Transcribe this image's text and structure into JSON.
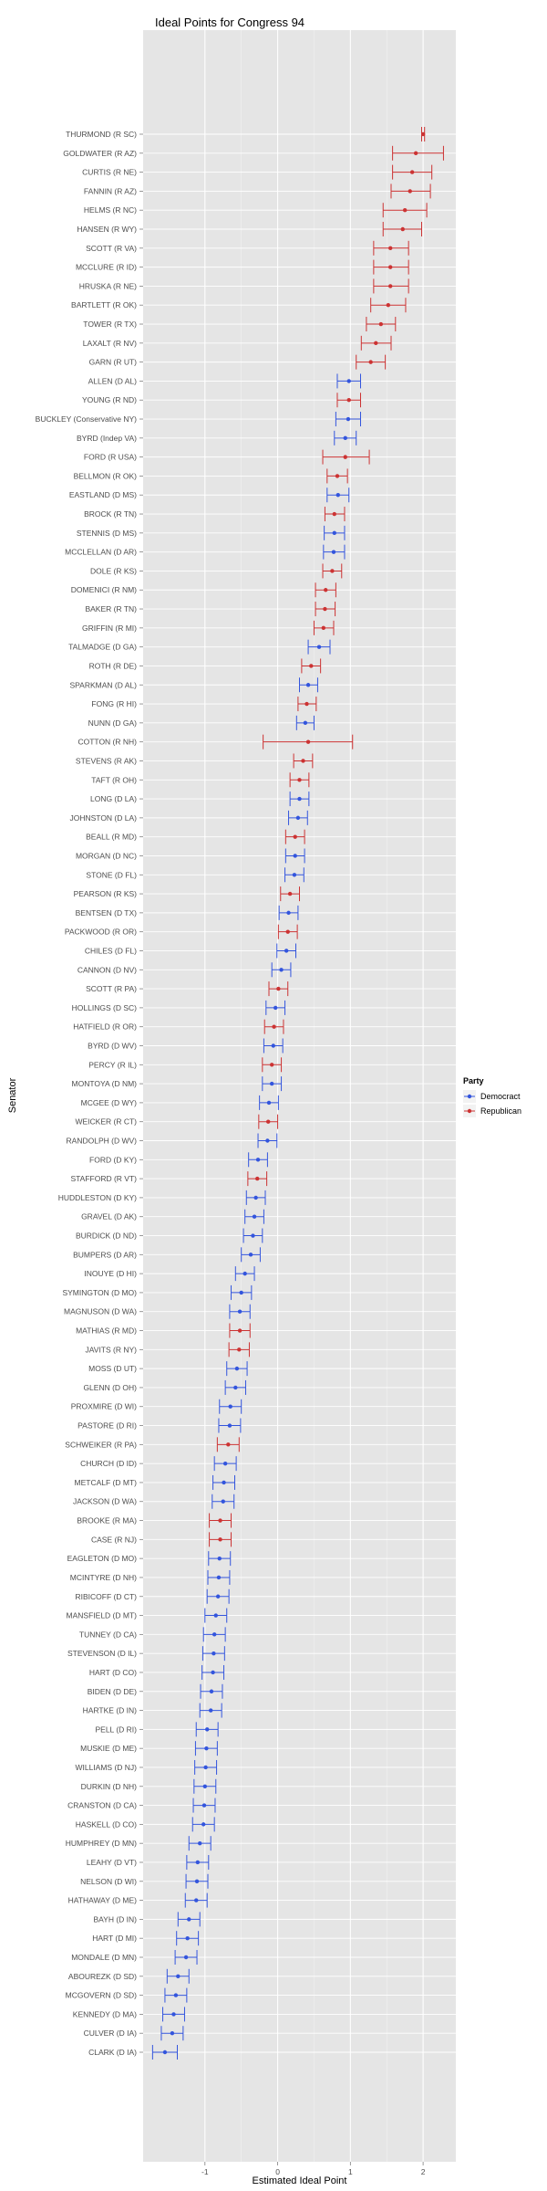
{
  "chart_data": {
    "type": "scatter",
    "title": "Ideal Points for Congress 94",
    "xlabel": "Estimated Ideal Point",
    "ylabel": "Senator",
    "xlim": [
      -1.85,
      2.45
    ],
    "xticks": [
      -1,
      0,
      1,
      2
    ],
    "xtick_labels": [
      "-1",
      "0",
      "1",
      "2"
    ],
    "grid": true,
    "error_bars": true,
    "legend": {
      "title": "Party",
      "position": "right",
      "entries": [
        {
          "name": "Democract",
          "color": "#3355dd"
        },
        {
          "name": "Republican",
          "color": "#cc3333"
        }
      ]
    },
    "party_colors": {
      "D": "#3355dd",
      "R": "#cc3333"
    },
    "points": [
      {
        "label": "THURMOND (R SC)",
        "party": "R",
        "x": 2.0,
        "lo": 1.98,
        "hi": 2.02
      },
      {
        "label": "GOLDWATER (R AZ)",
        "party": "R",
        "x": 1.9,
        "lo": 1.58,
        "hi": 2.28
      },
      {
        "label": "CURTIS (R NE)",
        "party": "R",
        "x": 1.85,
        "lo": 1.58,
        "hi": 2.12
      },
      {
        "label": "FANNIN (R AZ)",
        "party": "R",
        "x": 1.82,
        "lo": 1.56,
        "hi": 2.1
      },
      {
        "label": "HELMS (R NC)",
        "party": "R",
        "x": 1.75,
        "lo": 1.45,
        "hi": 2.05
      },
      {
        "label": "HANSEN (R WY)",
        "party": "R",
        "x": 1.72,
        "lo": 1.45,
        "hi": 1.98
      },
      {
        "label": "SCOTT (R VA)",
        "party": "R",
        "x": 1.55,
        "lo": 1.32,
        "hi": 1.8
      },
      {
        "label": "MCCLURE (R ID)",
        "party": "R",
        "x": 1.55,
        "lo": 1.32,
        "hi": 1.8
      },
      {
        "label": "HRUSKA (R NE)",
        "party": "R",
        "x": 1.55,
        "lo": 1.32,
        "hi": 1.8
      },
      {
        "label": "BARTLETT (R OK)",
        "party": "R",
        "x": 1.52,
        "lo": 1.28,
        "hi": 1.76
      },
      {
        "label": "TOWER (R TX)",
        "party": "R",
        "x": 1.42,
        "lo": 1.22,
        "hi": 1.62
      },
      {
        "label": "LAXALT (R NV)",
        "party": "R",
        "x": 1.35,
        "lo": 1.15,
        "hi": 1.56
      },
      {
        "label": "GARN (R UT)",
        "party": "R",
        "x": 1.28,
        "lo": 1.08,
        "hi": 1.48
      },
      {
        "label": "ALLEN (D AL)",
        "party": "D",
        "x": 0.98,
        "lo": 0.82,
        "hi": 1.14
      },
      {
        "label": "YOUNG (R ND)",
        "party": "R",
        "x": 0.98,
        "lo": 0.82,
        "hi": 1.14
      },
      {
        "label": "BUCKLEY (Conservative NY)",
        "party": "D",
        "x": 0.97,
        "lo": 0.8,
        "hi": 1.14
      },
      {
        "label": "BYRD (Indep VA)",
        "party": "D",
        "x": 0.93,
        "lo": 0.78,
        "hi": 1.08
      },
      {
        "label": "FORD (R USA)",
        "party": "R",
        "x": 0.93,
        "lo": 0.62,
        "hi": 1.26
      },
      {
        "label": "BELLMON (R OK)",
        "party": "R",
        "x": 0.82,
        "lo": 0.68,
        "hi": 0.96
      },
      {
        "label": "EASTLAND (D MS)",
        "party": "D",
        "x": 0.83,
        "lo": 0.68,
        "hi": 0.98
      },
      {
        "label": "BROCK (R TN)",
        "party": "R",
        "x": 0.78,
        "lo": 0.65,
        "hi": 0.92
      },
      {
        "label": "STENNIS (D MS)",
        "party": "D",
        "x": 0.78,
        "lo": 0.64,
        "hi": 0.92
      },
      {
        "label": "MCCLELLAN (D AR)",
        "party": "D",
        "x": 0.77,
        "lo": 0.63,
        "hi": 0.92
      },
      {
        "label": "DOLE (R KS)",
        "party": "R",
        "x": 0.75,
        "lo": 0.62,
        "hi": 0.88
      },
      {
        "label": "DOMENICI (R NM)",
        "party": "R",
        "x": 0.66,
        "lo": 0.52,
        "hi": 0.8
      },
      {
        "label": "BAKER (R TN)",
        "party": "R",
        "x": 0.65,
        "lo": 0.52,
        "hi": 0.79
      },
      {
        "label": "GRIFFIN (R MI)",
        "party": "R",
        "x": 0.63,
        "lo": 0.5,
        "hi": 0.77
      },
      {
        "label": "TALMADGE (D GA)",
        "party": "D",
        "x": 0.57,
        "lo": 0.42,
        "hi": 0.72
      },
      {
        "label": "ROTH (R DE)",
        "party": "R",
        "x": 0.46,
        "lo": 0.33,
        "hi": 0.59
      },
      {
        "label": "SPARKMAN (D AL)",
        "party": "D",
        "x": 0.42,
        "lo": 0.3,
        "hi": 0.55
      },
      {
        "label": "FONG (R HI)",
        "party": "R",
        "x": 0.4,
        "lo": 0.28,
        "hi": 0.53
      },
      {
        "label": "NUNN (D GA)",
        "party": "D",
        "x": 0.38,
        "lo": 0.26,
        "hi": 0.5
      },
      {
        "label": "COTTON (R NH)",
        "party": "R",
        "x": 0.42,
        "lo": -0.2,
        "hi": 1.03
      },
      {
        "label": "STEVENS (R AK)",
        "party": "R",
        "x": 0.35,
        "lo": 0.22,
        "hi": 0.48
      },
      {
        "label": "TAFT (R OH)",
        "party": "R",
        "x": 0.3,
        "lo": 0.17,
        "hi": 0.43
      },
      {
        "label": "LONG (D LA)",
        "party": "D",
        "x": 0.3,
        "lo": 0.17,
        "hi": 0.43
      },
      {
        "label": "JOHNSTON (D LA)",
        "party": "D",
        "x": 0.28,
        "lo": 0.15,
        "hi": 0.41
      },
      {
        "label": "BEALL (R MD)",
        "party": "R",
        "x": 0.24,
        "lo": 0.11,
        "hi": 0.37
      },
      {
        "label": "MORGAN (D NC)",
        "party": "D",
        "x": 0.24,
        "lo": 0.11,
        "hi": 0.37
      },
      {
        "label": "STONE (D FL)",
        "party": "D",
        "x": 0.23,
        "lo": 0.1,
        "hi": 0.36
      },
      {
        "label": "PEARSON (R KS)",
        "party": "R",
        "x": 0.17,
        "lo": 0.04,
        "hi": 0.3
      },
      {
        "label": "BENTSEN (D TX)",
        "party": "D",
        "x": 0.15,
        "lo": 0.02,
        "hi": 0.28
      },
      {
        "label": "PACKWOOD (R OR)",
        "party": "R",
        "x": 0.14,
        "lo": 0.01,
        "hi": 0.27
      },
      {
        "label": "CHILES (D FL)",
        "party": "D",
        "x": 0.12,
        "lo": -0.01,
        "hi": 0.25
      },
      {
        "label": "CANNON (D NV)",
        "party": "D",
        "x": 0.05,
        "lo": -0.08,
        "hi": 0.18
      },
      {
        "label": "SCOTT (R PA)",
        "party": "R",
        "x": 0.01,
        "lo": -0.12,
        "hi": 0.14
      },
      {
        "label": "HOLLINGS (D SC)",
        "party": "D",
        "x": -0.03,
        "lo": -0.16,
        "hi": 0.1
      },
      {
        "label": "HATFIELD (R OR)",
        "party": "R",
        "x": -0.05,
        "lo": -0.18,
        "hi": 0.08
      },
      {
        "label": "BYRD (D WV)",
        "party": "D",
        "x": -0.06,
        "lo": -0.19,
        "hi": 0.07
      },
      {
        "label": "PERCY (R IL)",
        "party": "R",
        "x": -0.08,
        "lo": -0.21,
        "hi": 0.05
      },
      {
        "label": "MONTOYA (D NM)",
        "party": "D",
        "x": -0.08,
        "lo": -0.21,
        "hi": 0.05
      },
      {
        "label": "MCGEE (D WY)",
        "party": "D",
        "x": -0.12,
        "lo": -0.25,
        "hi": 0.01
      },
      {
        "label": "WEICKER (R CT)",
        "party": "R",
        "x": -0.13,
        "lo": -0.26,
        "hi": 0.0
      },
      {
        "label": "RANDOLPH (D WV)",
        "party": "D",
        "x": -0.14,
        "lo": -0.27,
        "hi": -0.01
      },
      {
        "label": "FORD (D KY)",
        "party": "D",
        "x": -0.27,
        "lo": -0.4,
        "hi": -0.14
      },
      {
        "label": "STAFFORD (R VT)",
        "party": "R",
        "x": -0.28,
        "lo": -0.41,
        "hi": -0.15
      },
      {
        "label": "HUDDLESTON (D KY)",
        "party": "D",
        "x": -0.3,
        "lo": -0.43,
        "hi": -0.17
      },
      {
        "label": "GRAVEL (D AK)",
        "party": "D",
        "x": -0.32,
        "lo": -0.45,
        "hi": -0.19
      },
      {
        "label": "BURDICK (D ND)",
        "party": "D",
        "x": -0.34,
        "lo": -0.47,
        "hi": -0.21
      },
      {
        "label": "BUMPERS (D AR)",
        "party": "D",
        "x": -0.37,
        "lo": -0.5,
        "hi": -0.24
      },
      {
        "label": "INOUYE (D HI)",
        "party": "D",
        "x": -0.45,
        "lo": -0.58,
        "hi": -0.32
      },
      {
        "label": "SYMINGTON (D MO)",
        "party": "D",
        "x": -0.5,
        "lo": -0.64,
        "hi": -0.36
      },
      {
        "label": "MAGNUSON (D WA)",
        "party": "D",
        "x": -0.52,
        "lo": -0.66,
        "hi": -0.38
      },
      {
        "label": "MATHIAS (R MD)",
        "party": "R",
        "x": -0.52,
        "lo": -0.66,
        "hi": -0.38
      },
      {
        "label": "JAVITS (R NY)",
        "party": "R",
        "x": -0.53,
        "lo": -0.67,
        "hi": -0.39
      },
      {
        "label": "MOSS (D UT)",
        "party": "D",
        "x": -0.56,
        "lo": -0.7,
        "hi": -0.42
      },
      {
        "label": "GLENN (D OH)",
        "party": "D",
        "x": -0.58,
        "lo": -0.72,
        "hi": -0.44
      },
      {
        "label": "PROXMIRE (D WI)",
        "party": "D",
        "x": -0.65,
        "lo": -0.8,
        "hi": -0.5
      },
      {
        "label": "PASTORE (D RI)",
        "party": "D",
        "x": -0.66,
        "lo": -0.81,
        "hi": -0.51
      },
      {
        "label": "SCHWEIKER (R PA)",
        "party": "R",
        "x": -0.68,
        "lo": -0.83,
        "hi": -0.53
      },
      {
        "label": "CHURCH (D ID)",
        "party": "D",
        "x": -0.72,
        "lo": -0.87,
        "hi": -0.57
      },
      {
        "label": "METCALF (D MT)",
        "party": "D",
        "x": -0.74,
        "lo": -0.89,
        "hi": -0.59
      },
      {
        "label": "JACKSON (D WA)",
        "party": "D",
        "x": -0.75,
        "lo": -0.9,
        "hi": -0.6
      },
      {
        "label": "BROOKE (R MA)",
        "party": "R",
        "x": -0.79,
        "lo": -0.94,
        "hi": -0.64
      },
      {
        "label": "CASE (R NJ)",
        "party": "R",
        "x": -0.79,
        "lo": -0.94,
        "hi": -0.64
      },
      {
        "label": "EAGLETON (D MO)",
        "party": "D",
        "x": -0.8,
        "lo": -0.95,
        "hi": -0.65
      },
      {
        "label": "MCINTYRE (D NH)",
        "party": "D",
        "x": -0.81,
        "lo": -0.96,
        "hi": -0.66
      },
      {
        "label": "RIBICOFF (D CT)",
        "party": "D",
        "x": -0.82,
        "lo": -0.97,
        "hi": -0.67
      },
      {
        "label": "MANSFIELD (D MT)",
        "party": "D",
        "x": -0.85,
        "lo": -1.0,
        "hi": -0.7
      },
      {
        "label": "TUNNEY (D CA)",
        "party": "D",
        "x": -0.87,
        "lo": -1.02,
        "hi": -0.72
      },
      {
        "label": "STEVENSON (D IL)",
        "party": "D",
        "x": -0.88,
        "lo": -1.03,
        "hi": -0.73
      },
      {
        "label": "HART (D CO)",
        "party": "D",
        "x": -0.89,
        "lo": -1.04,
        "hi": -0.74
      },
      {
        "label": "BIDEN (D DE)",
        "party": "D",
        "x": -0.91,
        "lo": -1.06,
        "hi": -0.76
      },
      {
        "label": "HARTKE (D IN)",
        "party": "D",
        "x": -0.92,
        "lo": -1.07,
        "hi": -0.77
      },
      {
        "label": "PELL (D RI)",
        "party": "D",
        "x": -0.97,
        "lo": -1.12,
        "hi": -0.82
      },
      {
        "label": "MUSKIE (D ME)",
        "party": "D",
        "x": -0.98,
        "lo": -1.13,
        "hi": -0.83
      },
      {
        "label": "WILLIAMS (D NJ)",
        "party": "D",
        "x": -0.99,
        "lo": -1.14,
        "hi": -0.84
      },
      {
        "label": "DURKIN (D NH)",
        "party": "D",
        "x": -1.0,
        "lo": -1.15,
        "hi": -0.85
      },
      {
        "label": "CRANSTON (D CA)",
        "party": "D",
        "x": -1.01,
        "lo": -1.16,
        "hi": -0.86
      },
      {
        "label": "HASKELL (D CO)",
        "party": "D",
        "x": -1.02,
        "lo": -1.17,
        "hi": -0.87
      },
      {
        "label": "HUMPHREY (D MN)",
        "party": "D",
        "x": -1.07,
        "lo": -1.22,
        "hi": -0.92
      },
      {
        "label": "LEAHY (D VT)",
        "party": "D",
        "x": -1.1,
        "lo": -1.25,
        "hi": -0.95
      },
      {
        "label": "NELSON (D WI)",
        "party": "D",
        "x": -1.11,
        "lo": -1.26,
        "hi": -0.96
      },
      {
        "label": "HATHAWAY (D ME)",
        "party": "D",
        "x": -1.12,
        "lo": -1.27,
        "hi": -0.97
      },
      {
        "label": "BAYH (D IN)",
        "party": "D",
        "x": -1.22,
        "lo": -1.37,
        "hi": -1.07
      },
      {
        "label": "HART (D MI)",
        "party": "D",
        "x": -1.24,
        "lo": -1.39,
        "hi": -1.09
      },
      {
        "label": "MONDALE (D MN)",
        "party": "D",
        "x": -1.26,
        "lo": -1.41,
        "hi": -1.11
      },
      {
        "label": "ABOUREZK (D SD)",
        "party": "D",
        "x": -1.37,
        "lo": -1.52,
        "hi": -1.22
      },
      {
        "label": "MCGOVERN (D SD)",
        "party": "D",
        "x": -1.4,
        "lo": -1.55,
        "hi": -1.25
      },
      {
        "label": "KENNEDY (D MA)",
        "party": "D",
        "x": -1.43,
        "lo": -1.58,
        "hi": -1.28
      },
      {
        "label": "CULVER (D IA)",
        "party": "D",
        "x": -1.45,
        "lo": -1.6,
        "hi": -1.3
      },
      {
        "label": "CLARK (D IA)",
        "party": "D",
        "x": -1.55,
        "lo": -1.72,
        "hi": -1.38
      }
    ]
  }
}
